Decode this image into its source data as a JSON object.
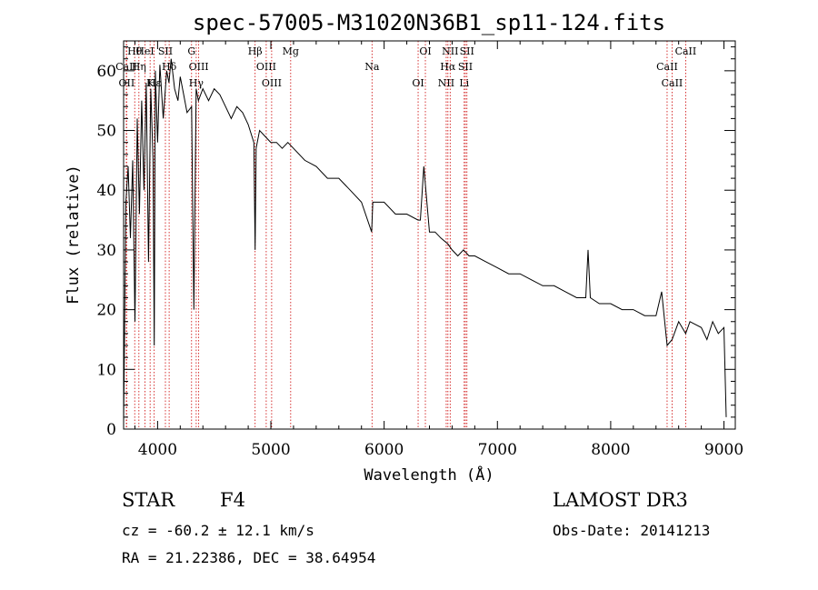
{
  "chart_data": {
    "type": "line",
    "title": "spec-57005-M31020N36B1_sp11-124.fits",
    "xlabel": "Wavelength (Å)",
    "ylabel": "Flux (relative)",
    "xlim": [
      3700,
      9100
    ],
    "ylim": [
      0,
      65
    ],
    "xticks": [
      4000,
      5000,
      6000,
      7000,
      8000,
      9000
    ],
    "yticks": [
      0,
      10,
      20,
      30,
      40,
      50,
      60
    ],
    "grid": false,
    "series": [
      {
        "name": "flux",
        "x": [
          3700,
          3720,
          3740,
          3760,
          3780,
          3800,
          3820,
          3840,
          3860,
          3880,
          3900,
          3920,
          3940,
          3960,
          3970,
          3980,
          4000,
          4020,
          4050,
          4080,
          4100,
          4120,
          4150,
          4180,
          4200,
          4230,
          4260,
          4300,
          4320,
          4340,
          4360,
          4400,
          4450,
          4500,
          4550,
          4600,
          4650,
          4700,
          4750,
          4800,
          4850,
          4861,
          4870,
          4900,
          4950,
          5000,
          5050,
          5100,
          5150,
          5200,
          5300,
          5400,
          5500,
          5600,
          5700,
          5800,
          5890,
          5900,
          6000,
          6100,
          6200,
          6300,
          6320,
          6350,
          6400,
          6450,
          6500,
          6563,
          6600,
          6650,
          6700,
          6750,
          6800,
          6900,
          7000,
          7100,
          7200,
          7300,
          7400,
          7500,
          7600,
          7700,
          7780,
          7800,
          7820,
          7900,
          8000,
          8100,
          8200,
          8300,
          8400,
          8450,
          8498,
          8542,
          8600,
          8662,
          8700,
          8800,
          8850,
          8900,
          8950,
          9000,
          9020
        ],
        "y": [
          1,
          38,
          44,
          32,
          45,
          18,
          52,
          36,
          55,
          40,
          58,
          28,
          57,
          45,
          14,
          60,
          48,
          61,
          52,
          60,
          58,
          62,
          57,
          55,
          59,
          56,
          53,
          54,
          20,
          57,
          55,
          57,
          55,
          57,
          56,
          54,
          52,
          54,
          53,
          51,
          48,
          30,
          47,
          50,
          49,
          48,
          48,
          47,
          48,
          47,
          45,
          44,
          42,
          42,
          40,
          38,
          33,
          38,
          38,
          36,
          36,
          35,
          35,
          44,
          33,
          33,
          32,
          31,
          30,
          29,
          30,
          29,
          29,
          28,
          27,
          26,
          26,
          25,
          24,
          24,
          23,
          22,
          22,
          30,
          22,
          21,
          21,
          20,
          20,
          19,
          19,
          23,
          14,
          15,
          18,
          16,
          18,
          17,
          15,
          18,
          16,
          17,
          2
        ]
      }
    ],
    "line_markers": [
      {
        "label": "Hθ",
        "x": 3798
      },
      {
        "label": "CaII",
        "x": 3724
      },
      {
        "label": "OII",
        "x": 3727
      },
      {
        "label": "HeI",
        "x": 3889
      },
      {
        "label": "Hη",
        "x": 3835
      },
      {
        "label": "K",
        "x": 3934
      },
      {
        "label": "SII",
        "x": 4069
      },
      {
        "label": "Hδ",
        "x": 4102
      },
      {
        "label": "Hε",
        "x": 3970
      },
      {
        "label": "G",
        "x": 4300
      },
      {
        "label": "OIII",
        "x": 4363
      },
      {
        "label": "Hγ",
        "x": 4341
      },
      {
        "label": "Hβ",
        "x": 4861
      },
      {
        "label": "OIII",
        "x": 4959
      },
      {
        "label": "OIII",
        "x": 5007
      },
      {
        "label": "Mg",
        "x": 5175
      },
      {
        "label": "Na",
        "x": 5893
      },
      {
        "label": "OI",
        "x": 6300
      },
      {
        "label": "OI",
        "x": 6364
      },
      {
        "label": "Hα",
        "x": 6563
      },
      {
        "label": "NII",
        "x": 6548
      },
      {
        "label": "NII",
        "x": 6583
      },
      {
        "label": "SII",
        "x": 6717
      },
      {
        "label": "Li",
        "x": 6707
      },
      {
        "label": "SII",
        "x": 6731
      },
      {
        "label": "CaII",
        "x": 8498
      },
      {
        "label": "CaII",
        "x": 8542
      },
      {
        "label": "CaII",
        "x": 8662
      }
    ]
  },
  "info": {
    "class_text": "STAR",
    "subclass_text": "F4",
    "survey": "LAMOST DR3",
    "cz_text": "cz = -60.2 ± 12.1 km/s",
    "obs_date": "Obs-Date: 20141213",
    "radec_text": "RA =  21.22386, DEC =  38.64954"
  },
  "colors": {
    "spectrum": "#000000",
    "marker_line": "#cc0000",
    "text": "#000000"
  }
}
